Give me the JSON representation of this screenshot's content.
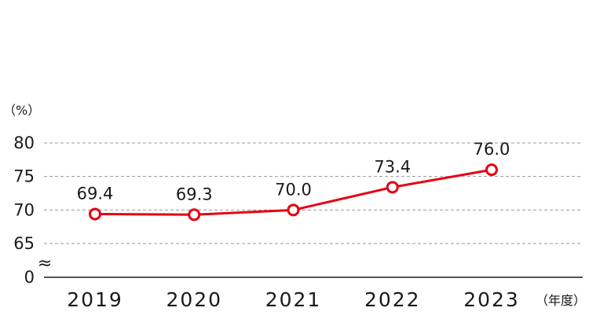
{
  "chart_data": {
    "type": "line",
    "categories": [
      "2019",
      "2020",
      "2021",
      "2022",
      "2023"
    ],
    "series": [
      {
        "values": [
          69.4,
          69.3,
          70.0,
          73.4,
          76.0
        ],
        "labels": [
          "69.4",
          "69.3",
          "70.0",
          "73.4",
          "76.0"
        ],
        "color": "#e60012"
      }
    ],
    "y_unit": "（%）",
    "x_unit": "（年度）",
    "yticks": [
      {
        "value": 80,
        "label": "80"
      },
      {
        "value": 75,
        "label": "75"
      },
      {
        "value": 70,
        "label": "70"
      },
      {
        "value": 65,
        "label": "65"
      },
      {
        "value": 0,
        "label": "0"
      }
    ],
    "ylim": [
      65,
      80
    ],
    "axis_break": true,
    "axis_break_symbol": "≈",
    "grid": "horizontal dashed",
    "colors": {
      "line": "#e60012",
      "marker_fill": "#ffffff",
      "grid": "#9a9a9a",
      "axis": "#1a1a1a"
    }
  }
}
